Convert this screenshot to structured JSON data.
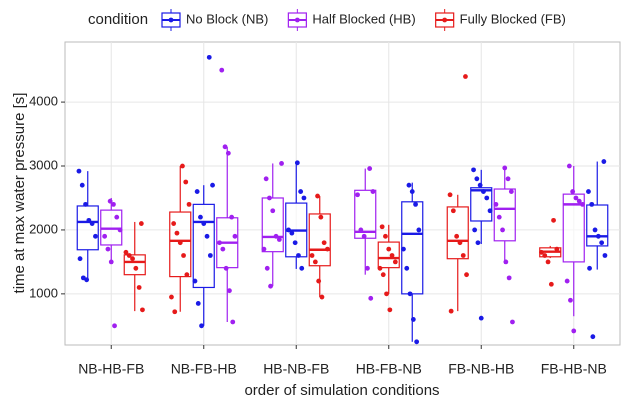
{
  "chart_data": {
    "type": "boxplot",
    "legend_title": "condition",
    "y_label": "time at max water pressure [s]",
    "x_label": "order of simulation conditions",
    "categories": [
      "NB-HB-FB",
      "NB-FB-HB",
      "HB-NB-FB",
      "HB-FB-NB",
      "FB-NB-HB",
      "FB-HB-NB"
    ],
    "ylim": [
      200,
      4940
    ],
    "yticks": [
      1000,
      2000,
      3000,
      4000
    ],
    "grid": true,
    "legend_position": "top",
    "series": [
      {
        "name": "No Block (NB)",
        "color": "#1a1ae6",
        "slot": [
          0,
          1,
          1,
          2,
          1,
          2
        ],
        "boxes": [
          {
            "low": 1220,
            "q1": 1690,
            "median": 2125,
            "q3": 2375,
            "high": 2920
          },
          {
            "low": 500,
            "q1": 1100,
            "median": 2125,
            "q3": 2400,
            "high": 2700
          },
          {
            "low": 1390,
            "q1": 1580,
            "median": 1990,
            "q3": 2420,
            "high": 3050
          },
          {
            "low": 250,
            "q1": 1000,
            "median": 1940,
            "q3": 2440,
            "high": 2740
          },
          {
            "low": 1780,
            "q1": 2140,
            "median": 2620,
            "q3": 2660,
            "high": 2940
          },
          {
            "low": 1380,
            "q1": 1750,
            "median": 1900,
            "q3": 2390,
            "high": 3070
          }
        ],
        "points": [
          [
            2920,
            2700,
            2400,
            2150,
            2100,
            1900,
            1550,
            1250,
            1220
          ],
          [
            4700,
            2700,
            2600,
            2200,
            2100,
            1900,
            1600,
            1200,
            850,
            500
          ],
          [
            3050,
            2600,
            2500,
            2000,
            1950,
            1800,
            1600,
            1400
          ],
          [
            2700,
            2600,
            2400,
            2000,
            1700,
            1400,
            1000,
            600,
            250
          ],
          [
            2940,
            2800,
            2700,
            2600,
            2500,
            2300,
            2000,
            1800,
            620
          ],
          [
            3070,
            2600,
            2400,
            2000,
            1900,
            1800,
            1600,
            1400,
            330
          ]
        ]
      },
      {
        "name": "Half Blocked (HB)",
        "color": "#a020f0",
        "slot": [
          1,
          2,
          0,
          0,
          2,
          1
        ],
        "boxes": [
          {
            "low": 1470,
            "q1": 1765,
            "median": 2020,
            "q3": 2310,
            "high": 2500
          },
          {
            "low": 560,
            "q1": 1410,
            "median": 1800,
            "q3": 2190,
            "high": 3300
          },
          {
            "low": 1120,
            "q1": 1660,
            "median": 1890,
            "q3": 2500,
            "high": 3040
          },
          {
            "low": 1300,
            "q1": 1870,
            "median": 1970,
            "q3": 2620,
            "high": 2960
          },
          {
            "low": 1470,
            "q1": 1830,
            "median": 2330,
            "q3": 2640,
            "high": 2970
          },
          {
            "low": 650,
            "q1": 1500,
            "median": 2400,
            "q3": 2560,
            "high": 3000
          }
        ],
        "points": [
          [
            2450,
            2400,
            2200,
            2000,
            1900,
            1700,
            1500,
            500
          ],
          [
            4500,
            3300,
            3200,
            2200,
            1900,
            1800,
            1700,
            1400,
            1050,
            560
          ],
          [
            3040,
            2800,
            2500,
            2300,
            1900,
            1850,
            1700,
            1400,
            1120
          ],
          [
            2960,
            2600,
            2550,
            2000,
            1900,
            1400,
            930
          ],
          [
            2970,
            2800,
            2600,
            2400,
            2200,
            2000,
            1500,
            1250,
            560
          ],
          [
            3000,
            2600,
            2500,
            2450,
            2400,
            1200,
            900,
            420
          ]
        ]
      },
      {
        "name": "Fully Blocked (FB)",
        "color": "#e61a1a",
        "slot": [
          2,
          0,
          2,
          1,
          0,
          0
        ],
        "boxes": [
          {
            "low": 730,
            "q1": 1300,
            "median": 1500,
            "q3": 1610,
            "high": 2125
          },
          {
            "low": 720,
            "q1": 1270,
            "median": 1830,
            "q3": 2280,
            "high": 3000
          },
          {
            "low": 950,
            "q1": 1440,
            "median": 1690,
            "q3": 2250,
            "high": 2530
          },
          {
            "low": 1000,
            "q1": 1410,
            "median": 1560,
            "q3": 1810,
            "high": 2080
          },
          {
            "low": 730,
            "q1": 1550,
            "median": 1830,
            "q3": 2360,
            "high": 2550
          },
          {
            "low": 1560,
            "q1": 1580,
            "median": 1660,
            "q3": 1720,
            "high": 1750
          }
        ],
        "points": [
          [
            2100,
            1650,
            1600,
            1550,
            1400,
            1100,
            750
          ],
          [
            3000,
            2750,
            2400,
            2100,
            1950,
            1800,
            1600,
            1300,
            950,
            720
          ],
          [
            2530,
            2200,
            1800,
            1700,
            1600,
            1500,
            1200,
            950
          ],
          [
            2050,
            1900,
            1700,
            1600,
            1500,
            1400,
            1300,
            1000,
            750
          ],
          [
            4400,
            2550,
            2300,
            1900,
            1800,
            1600,
            1300,
            730
          ],
          [
            2150,
            1700,
            1650,
            1600,
            1500,
            1150
          ]
        ]
      }
    ]
  }
}
